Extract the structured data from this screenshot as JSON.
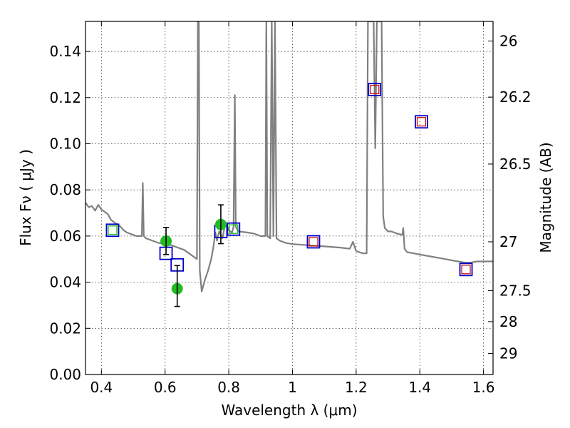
{
  "chart_data": {
    "type": "line",
    "title": "",
    "xlabel": "Wavelength  λ (μm)",
    "ylabel": "Flux  Fν  ( μJy )",
    "y2label": "Magnitude (AB)",
    "xlim": [
      0.35,
      1.63
    ],
    "ylim": [
      0.0,
      0.153
    ],
    "grid": true,
    "x_ticks": [
      0.4,
      0.6,
      0.8,
      1.0,
      1.2,
      1.4,
      1.6
    ],
    "x_tick_labels": [
      "0.4",
      "0.6",
      "0.8",
      "1",
      "1.2",
      "1.4",
      "1.6"
    ],
    "y_ticks": [
      0.0,
      0.02,
      0.04,
      0.06,
      0.08,
      0.1,
      0.12,
      0.14
    ],
    "y_tick_labels": [
      "0.00",
      "0.02",
      "0.04",
      "0.06",
      "0.08",
      "0.10",
      "0.12",
      "0.14"
    ],
    "y2_ticks": [
      {
        "label": "26",
        "flux": 0.1445
      },
      {
        "label": "26.2",
        "flux": 0.1202
      },
      {
        "label": "26.5",
        "flux": 0.0912
      },
      {
        "label": "27",
        "flux": 0.0575
      },
      {
        "label": "27.5",
        "flux": 0.0363
      },
      {
        "label": "28",
        "flux": 0.0229
      },
      {
        "label": "29",
        "flux": 0.0091
      }
    ],
    "series": [
      {
        "style": "line",
        "color": "#808080",
        "points": [
          [
            0.35,
            0.0745
          ],
          [
            0.36,
            0.0725
          ],
          [
            0.37,
            0.073
          ],
          [
            0.38,
            0.071
          ],
          [
            0.39,
            0.0735
          ],
          [
            0.4,
            0.0715
          ],
          [
            0.41,
            0.0705
          ],
          [
            0.42,
            0.0695
          ],
          [
            0.43,
            0.067
          ],
          [
            0.44,
            0.066
          ],
          [
            0.45,
            0.065
          ],
          [
            0.46,
            0.064
          ],
          [
            0.47,
            0.0625
          ],
          [
            0.48,
            0.0615
          ],
          [
            0.49,
            0.061
          ],
          [
            0.5,
            0.0605
          ],
          [
            0.51,
            0.06
          ],
          [
            0.52,
            0.06
          ],
          [
            0.527,
            0.06
          ],
          [
            0.53,
            0.083
          ],
          [
            0.533,
            0.06
          ],
          [
            0.54,
            0.059
          ],
          [
            0.56,
            0.058
          ],
          [
            0.58,
            0.057
          ],
          [
            0.6,
            0.0565
          ],
          [
            0.62,
            0.056
          ],
          [
            0.64,
            0.055
          ],
          [
            0.66,
            0.054
          ],
          [
            0.68,
            0.052
          ],
          [
            0.7,
            0.05
          ],
          [
            0.703,
            0.153
          ],
          [
            0.706,
            0.153
          ],
          [
            0.709,
            0.045
          ],
          [
            0.715,
            0.036
          ],
          [
            0.725,
            0.041
          ],
          [
            0.735,
            0.045
          ],
          [
            0.745,
            0.05
          ],
          [
            0.752,
            0.0555
          ],
          [
            0.758,
            0.0615
          ],
          [
            0.763,
            0.058
          ],
          [
            0.77,
            0.062
          ],
          [
            0.78,
            0.059
          ],
          [
            0.79,
            0.066
          ],
          [
            0.8,
            0.0625
          ],
          [
            0.81,
            0.0615
          ],
          [
            0.815,
            0.064
          ],
          [
            0.819,
            0.121
          ],
          [
            0.822,
            0.064
          ],
          [
            0.83,
            0.062
          ],
          [
            0.86,
            0.0615
          ],
          [
            0.88,
            0.061
          ],
          [
            0.9,
            0.06
          ],
          [
            0.915,
            0.06
          ],
          [
            0.918,
            0.153
          ],
          [
            0.921,
            0.06
          ],
          [
            0.93,
            0.059
          ],
          [
            0.935,
            0.153
          ],
          [
            0.94,
            0.06
          ],
          [
            0.945,
            0.153
          ],
          [
            0.95,
            0.059
          ],
          [
            0.96,
            0.058
          ],
          [
            0.98,
            0.057
          ],
          [
            1.0,
            0.0565
          ],
          [
            1.05,
            0.056
          ],
          [
            1.1,
            0.0555
          ],
          [
            1.15,
            0.055
          ],
          [
            1.18,
            0.0545
          ],
          [
            1.19,
            0.0575
          ],
          [
            1.2,
            0.0535
          ],
          [
            1.22,
            0.0525
          ],
          [
            1.233,
            0.0525
          ],
          [
            1.237,
            0.153
          ],
          [
            1.242,
            0.153
          ],
          [
            1.25,
            0.153
          ],
          [
            1.255,
            0.153
          ],
          [
            1.26,
            0.098
          ],
          [
            1.265,
            0.153
          ],
          [
            1.27,
            0.153
          ],
          [
            1.28,
            0.153
          ],
          [
            1.285,
            0.0685
          ],
          [
            1.29,
            0.0635
          ],
          [
            1.3,
            0.062
          ],
          [
            1.31,
            0.062
          ],
          [
            1.32,
            0.0615
          ],
          [
            1.33,
            0.061
          ],
          [
            1.345,
            0.0605
          ],
          [
            1.348,
            0.0635
          ],
          [
            1.352,
            0.0545
          ],
          [
            1.36,
            0.053
          ],
          [
            1.38,
            0.0525
          ],
          [
            1.4,
            0.052
          ],
          [
            1.42,
            0.0515
          ],
          [
            1.44,
            0.051
          ],
          [
            1.46,
            0.0505
          ],
          [
            1.48,
            0.05
          ],
          [
            1.5,
            0.0495
          ],
          [
            1.52,
            0.049
          ],
          [
            1.54,
            0.0485
          ],
          [
            1.56,
            0.0485
          ],
          [
            1.58,
            0.049
          ],
          [
            1.6,
            0.049
          ],
          [
            1.63,
            0.049
          ]
        ]
      },
      {
        "style": "open-square",
        "color": "#0000cc",
        "points": [
          [
            0.435,
            0.0625
          ],
          [
            0.603,
            0.0525
          ],
          [
            0.638,
            0.0475
          ],
          [
            0.775,
            0.062
          ],
          [
            0.815,
            0.063
          ],
          [
            1.066,
            0.0575
          ],
          [
            1.258,
            0.1235
          ],
          [
            1.405,
            0.1095
          ],
          [
            1.545,
            0.0455
          ]
        ]
      },
      {
        "style": "open-square-small",
        "color": "#cc0000",
        "points": [
          [
            1.066,
            0.0575
          ],
          [
            1.258,
            0.1235
          ],
          [
            1.405,
            0.1095
          ],
          [
            1.545,
            0.0455
          ]
        ]
      },
      {
        "style": "open-square-small",
        "color": "#00bb00",
        "points": [
          [
            0.435,
            0.0625
          ],
          [
            0.815,
            0.063
          ]
        ]
      },
      {
        "style": "filled-circle",
        "color": "#22bb22",
        "points": [
          [
            0.603,
            0.0578
          ],
          [
            0.638,
            0.0372
          ],
          [
            0.775,
            0.065
          ]
        ]
      },
      {
        "style": "errorbar",
        "color": "#000000",
        "points": [
          {
            "x": 0.603,
            "y": 0.0578,
            "low": 0.052,
            "high": 0.0637
          },
          {
            "x": 0.638,
            "y": 0.0372,
            "low": 0.0295,
            "high": 0.0472
          },
          {
            "x": 0.775,
            "y": 0.065,
            "low": 0.0567,
            "high": 0.0735
          }
        ]
      }
    ]
  }
}
